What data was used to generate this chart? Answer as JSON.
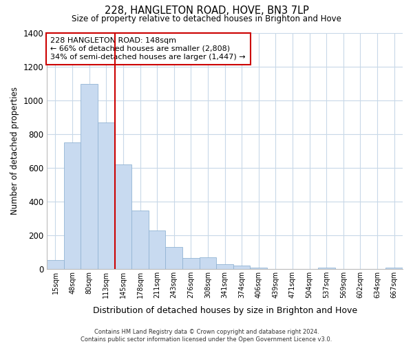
{
  "title": "228, HANGLETON ROAD, HOVE, BN3 7LP",
  "subtitle": "Size of property relative to detached houses in Brighton and Hove",
  "xlabel": "Distribution of detached houses by size in Brighton and Hove",
  "ylabel": "Number of detached properties",
  "categories": [
    "15sqm",
    "48sqm",
    "80sqm",
    "113sqm",
    "145sqm",
    "178sqm",
    "211sqm",
    "243sqm",
    "276sqm",
    "308sqm",
    "341sqm",
    "374sqm",
    "406sqm",
    "439sqm",
    "471sqm",
    "504sqm",
    "537sqm",
    "569sqm",
    "602sqm",
    "634sqm",
    "667sqm"
  ],
  "values": [
    52,
    750,
    1095,
    870,
    620,
    348,
    228,
    132,
    65,
    70,
    28,
    20,
    8,
    0,
    0,
    0,
    10,
    0,
    0,
    0,
    10
  ],
  "bar_color": "#c8daf0",
  "bar_edge_color": "#92b4d4",
  "vline_x_index": 4,
  "vline_color": "#cc0000",
  "annotation_text": "228 HANGLETON ROAD: 148sqm\n← 66% of detached houses are smaller (2,808)\n34% of semi-detached houses are larger (1,447) →",
  "annotation_box_color": "#ffffff",
  "annotation_box_edge": "#cc0000",
  "ylim": [
    0,
    1400
  ],
  "yticks": [
    0,
    200,
    400,
    600,
    800,
    1000,
    1200,
    1400
  ],
  "footnote": "Contains HM Land Registry data © Crown copyright and database right 2024.\nContains public sector information licensed under the Open Government Licence v3.0.",
  "background_color": "#ffffff",
  "grid_color": "#c8d8e8"
}
